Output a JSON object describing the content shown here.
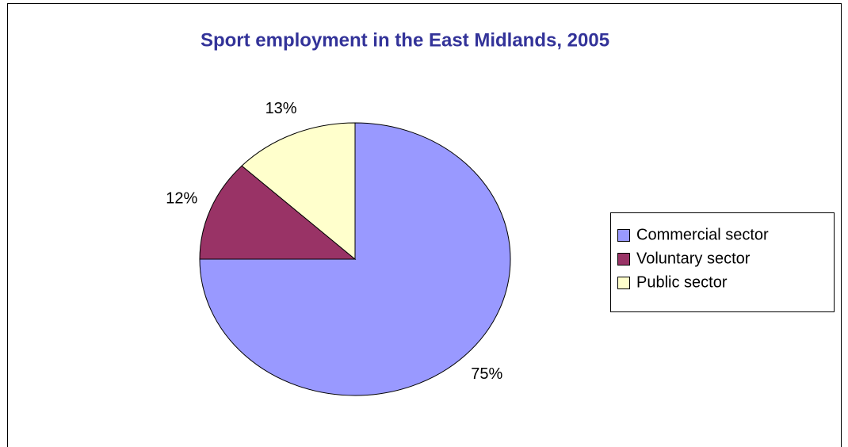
{
  "chart_data": {
    "type": "pie",
    "title": "Sport employment in the East Midlands, 2005",
    "categories": [
      "Commercial sector",
      "Voluntary sector",
      "Public sector"
    ],
    "values": [
      75,
      12,
      13
    ],
    "value_labels": [
      "75%",
      "12%",
      "13%"
    ],
    "colors": [
      "#9999ff",
      "#993366",
      "#ffffcc"
    ],
    "legend": "right"
  }
}
